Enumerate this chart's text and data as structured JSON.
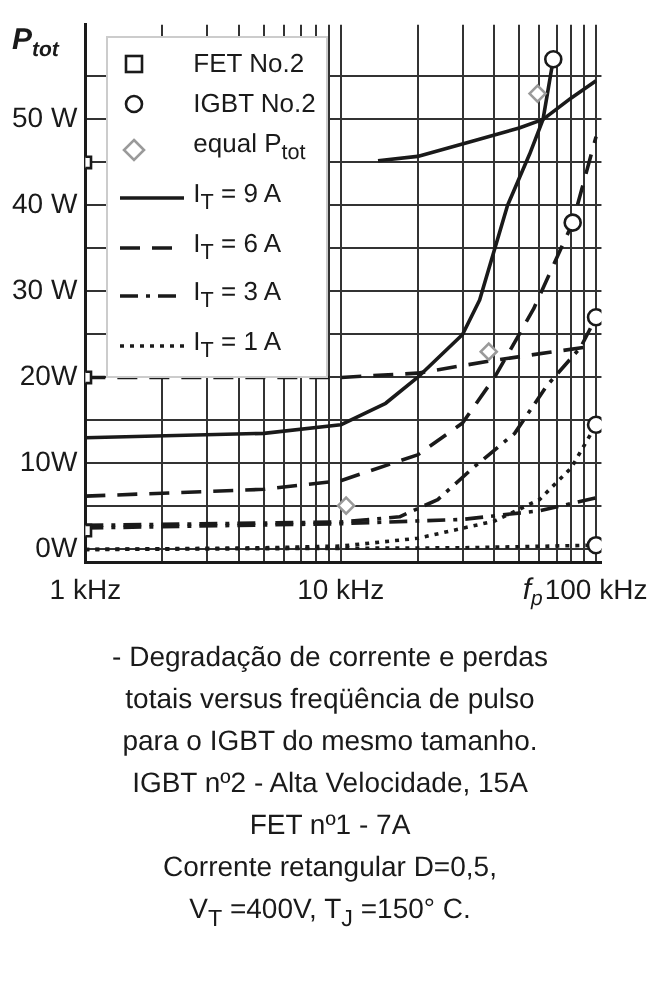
{
  "chart_data": {
    "type": "line",
    "xlabel": "f$_{p}$",
    "ylabel": "P$_{tot}$",
    "xlim": [
      1,
      105
    ],
    "ylim": [
      -1.5,
      61
    ],
    "xticks": [
      {
        "value": 1,
        "label": "1 kHz"
      },
      {
        "value": 2,
        "label": null
      },
      {
        "value": 3,
        "label": null
      },
      {
        "value": 4,
        "label": null
      },
      {
        "value": 5,
        "label": null
      },
      {
        "value": 6,
        "label": null
      },
      {
        "value": 7,
        "label": null
      },
      {
        "value": 8,
        "label": null
      },
      {
        "value": 9,
        "label": null
      },
      {
        "value": 10,
        "label": "10 kHz"
      },
      {
        "value": 20,
        "label": null
      },
      {
        "value": 30,
        "label": null
      },
      {
        "value": 40,
        "label": null
      },
      {
        "value": 50,
        "label": null
      },
      {
        "value": 60,
        "label": null
      },
      {
        "value": 70,
        "label": null
      },
      {
        "value": 80,
        "label": null
      },
      {
        "value": 90,
        "label": null
      },
      {
        "value": 100,
        "label": "100 kHz"
      }
    ],
    "yticks": [
      {
        "value": 0,
        "label": "0W"
      },
      {
        "value": 5,
        "label": null
      },
      {
        "value": 10,
        "label": "10W"
      },
      {
        "value": 15,
        "label": null
      },
      {
        "value": 20,
        "label": "20W"
      },
      {
        "value": 25,
        "label": null
      },
      {
        "value": 30,
        "label": "30 W"
      },
      {
        "value": 35,
        "label": null
      },
      {
        "value": 40,
        "label": "40 W"
      },
      {
        "value": 45,
        "label": null
      },
      {
        "value": 50,
        "label": "50 W"
      },
      {
        "value": 55,
        "label": null
      }
    ],
    "grid": true,
    "legend": "top left",
    "log": "x",
    "series": [
      {
        "name": "FET No.2",
        "type": "scatter",
        "marker": "square",
        "color": "#1a1a1a",
        "x": [
          1,
          1,
          1
        ],
        "values": [
          45,
          20,
          2.2
        ]
      },
      {
        "name": "IGBT No.2",
        "type": "scatter",
        "marker": "circle",
        "color": "#1a1a1a",
        "x": [
          68,
          81,
          100,
          100,
          100
        ],
        "values": [
          57,
          38,
          27,
          14.5,
          0.5
        ]
      },
      {
        "name": "equal P$_{tot}$",
        "type": "scatter",
        "marker": "diamond",
        "color": "#9a9a9a",
        "x": [
          59,
          38,
          10.5
        ],
        "values": [
          53,
          23,
          5.1
        ]
      },
      {
        "name": "I$_{T}$ = 9 A",
        "type": "line",
        "line_style": "solid",
        "color": "#1a1a1a",
        "x": [
          1,
          5,
          10,
          15,
          20,
          30,
          35,
          45,
          55,
          62,
          68
        ],
        "values": [
          13,
          13.5,
          14.5,
          17,
          20,
          25,
          29,
          40,
          46,
          50,
          57
        ]
      },
      {
        "type": "line",
        "line_style": "solid",
        "color": "#1a1a1a",
        "x": [
          14,
          20,
          33,
          50,
          62,
          80,
          100
        ],
        "values": [
          45.2,
          45.7,
          47.5,
          49,
          50,
          52.5,
          54.5
        ]
      },
      {
        "name": "I$_{T}$ = 6 A",
        "type": "line",
        "line_style": "dashed",
        "color": "#1a1a1a",
        "x": [
          1,
          10,
          20,
          40,
          90
        ],
        "values": [
          20,
          20,
          20.5,
          22,
          23.5
        ]
      },
      {
        "type": "line",
        "line_style": "dashed",
        "color": "#1a1a1a",
        "x": [
          1,
          5,
          10,
          20,
          30,
          40,
          50,
          57,
          81,
          100
        ],
        "values": [
          6.2,
          7,
          8,
          11,
          14.7,
          20,
          25,
          28,
          38,
          48
        ]
      },
      {
        "name": "I$_{T}$ = 3 A",
        "type": "line",
        "line_style": "dashdot",
        "color": "#1a1a1a",
        "x": [
          1,
          10,
          30,
          60,
          100
        ],
        "values": [
          2.5,
          3,
          3.5,
          4.5,
          6
        ]
      },
      {
        "type": "line",
        "line_style": "dashdot",
        "color": "#1a1a1a",
        "x": [
          1,
          10,
          17,
          24,
          33,
          48,
          64,
          87,
          100
        ],
        "values": [
          2.8,
          3.2,
          3.8,
          5.8,
          9.5,
          13.5,
          19,
          23.5,
          27
        ]
      },
      {
        "name": "I$_{T}$ = 1 A",
        "type": "line",
        "line_style": "dotted",
        "color": "#1a1a1a",
        "x": [
          1,
          5,
          10,
          20,
          40,
          60,
          80,
          100
        ],
        "values": [
          0,
          0.2,
          0.4,
          1.3,
          3.3,
          5.8,
          9.5,
          14.5
        ]
      },
      {
        "type": "line",
        "line_style": "dotted",
        "color": "#1a1a1a",
        "x": [
          1,
          30,
          100
        ],
        "values": [
          0,
          0.2,
          0.5
        ]
      }
    ],
    "annotations": [
      "- Degradação de corrente e perdas",
      "totais versus freqüência de pulso",
      "para o IGBT do mesmo tamanho.",
      "IGBT nº2 - Alta Velocidade, 15A",
      "FET nº1 - 7A",
      "Corrente retangular  D=0,5,",
      "V$_{T}$ =400V, T$_{J}$ =150° C."
    ]
  }
}
